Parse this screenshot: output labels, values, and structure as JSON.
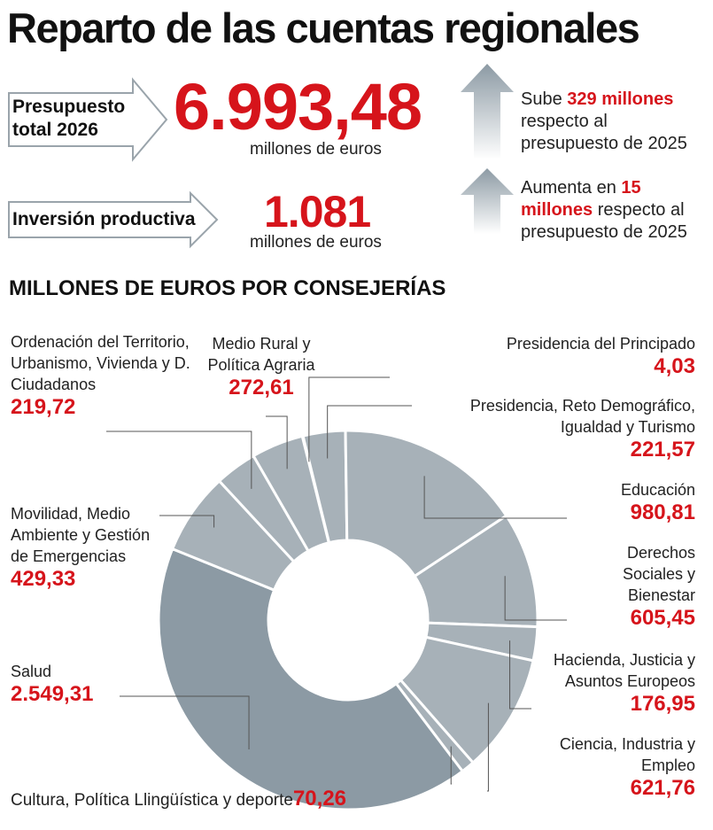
{
  "chart_data": {
    "type": "donut",
    "title": "Reparto de las cuentas regionales",
    "summary": {
      "budget_label": "Presupuesto total 2026",
      "budget_value": "6.993,48",
      "budget_unit": "millones de euros",
      "budget_change": [
        "Sube ",
        "329 millones",
        " respecto al presupuesto de 2025"
      ],
      "investment_label": "Inversión productiva",
      "investment_value": "1.081",
      "investment_unit": "millones de euros",
      "investment_change": [
        "Aumenta en ",
        "15 millones",
        " respecto al presupuesto de 2025"
      ]
    },
    "subtitle": "MILLONES DE EUROS POR CONSEJERÍAS",
    "categories": [
      "Presidencia del Principado",
      "Presidencia, Reto Demográfico, Igualdad y Turismo",
      "Educación",
      "Derechos Sociales y Bienestar",
      "Hacienda, Justicia y Asuntos Europeos",
      "Ciencia, Industria y Empleo",
      "Cultura, Política Llingüística y deporte",
      "Salud",
      "Movilidad, Medio Ambiente y Gestión de Emergencias",
      "Ordenación del Territorio, Urbanismo, Vivienda y D. Ciudadanos",
      "Medio Rural y Política Agraria"
    ],
    "values": [
      4.03,
      221.57,
      980.81,
      605.45,
      176.95,
      621.76,
      70.26,
      2549.31,
      429.33,
      219.72,
      272.61
    ],
    "value_labels": [
      "4,03",
      "221,57",
      "980,81",
      "605,45",
      "176,95",
      "621,76",
      "70,26",
      "2.549,31",
      "429,33",
      "219,72",
      "272,61"
    ],
    "colors": [
      "#a7b1b8",
      "#a7b1b8",
      "#a7b1b8",
      "#a7b1b8",
      "#a7b1b8",
      "#a7b1b8",
      "#a7b1b8",
      "#8c9aa4",
      "#a7b1b8",
      "#a7b1b8",
      "#a7b1b8"
    ],
    "label_color": "#d6141b"
  }
}
